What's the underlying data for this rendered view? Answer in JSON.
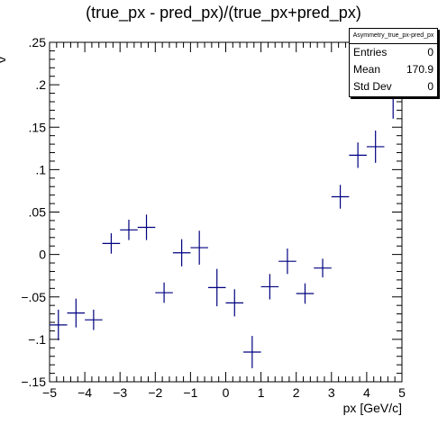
{
  "chart_data": {
    "type": "scatter",
    "title": "(true_px - pred_px)/(true_px+pred_px)",
    "xlabel": "px [GeV/c]",
    "ylabel": "y",
    "xlim": [
      -5,
      5
    ],
    "ylim": [
      -0.15,
      0.25
    ],
    "x_ticks": [
      -5,
      -4,
      -3,
      -2,
      -1,
      0,
      1,
      2,
      3,
      4,
      5
    ],
    "y_ticks": [
      -0.15,
      -0.1,
      -0.05,
      0,
      0.05,
      0.1,
      0.15,
      0.2,
      0.25
    ],
    "bin_width": 0.5,
    "points": [
      {
        "x": -4.75,
        "y": -0.083,
        "err": 0.018
      },
      {
        "x": -4.25,
        "y": -0.069,
        "err": 0.017
      },
      {
        "x": -3.75,
        "y": -0.077,
        "err": 0.012
      },
      {
        "x": -3.25,
        "y": 0.013,
        "err": 0.012
      },
      {
        "x": -2.75,
        "y": 0.029,
        "err": 0.012
      },
      {
        "x": -2.25,
        "y": 0.032,
        "err": 0.015
      },
      {
        "x": -1.75,
        "y": -0.045,
        "err": 0.012
      },
      {
        "x": -1.25,
        "y": 0.002,
        "err": 0.016
      },
      {
        "x": -0.75,
        "y": 0.008,
        "err": 0.02
      },
      {
        "x": -0.25,
        "y": -0.039,
        "err": 0.022
      },
      {
        "x": 0.25,
        "y": -0.057,
        "err": 0.016
      },
      {
        "x": 0.75,
        "y": -0.115,
        "err": 0.019
      },
      {
        "x": 1.25,
        "y": -0.038,
        "err": 0.015
      },
      {
        "x": 1.75,
        "y": -0.008,
        "err": 0.015
      },
      {
        "x": 2.25,
        "y": -0.046,
        "err": 0.012
      },
      {
        "x": 2.75,
        "y": -0.016,
        "err": 0.011
      },
      {
        "x": 3.25,
        "y": 0.068,
        "err": 0.014
      },
      {
        "x": 3.75,
        "y": 0.117,
        "err": 0.015
      },
      {
        "x": 4.25,
        "y": 0.127,
        "err": 0.019
      },
      {
        "x": 4.75,
        "y": 0.19,
        "err": 0.03
      }
    ],
    "marker_color": "#000080",
    "grid": false,
    "legend": "top-right"
  },
  "statbox": {
    "name": "Asymmetry_true_px-pred_px",
    "rows": [
      {
        "label": "Entries",
        "value": "0"
      },
      {
        "label": "Mean",
        "value": "170.9"
      },
      {
        "label": "Std Dev",
        "value": "0"
      }
    ]
  }
}
